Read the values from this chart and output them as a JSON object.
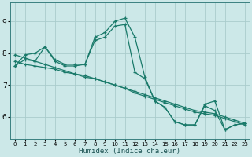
{
  "xlabel": "Humidex (Indice chaleur)",
  "ylabel": "",
  "bg_color": "#cce8e8",
  "line_color": "#1a7a6a",
  "grid_color": "#aacccc",
  "xlim": [
    -0.5,
    23.5
  ],
  "ylim": [
    5.3,
    9.6
  ],
  "xticks": [
    0,
    1,
    2,
    3,
    4,
    5,
    6,
    7,
    8,
    9,
    10,
    11,
    12,
    13,
    14,
    15,
    16,
    17,
    18,
    19,
    20,
    21,
    22,
    23
  ],
  "yticks": [
    6,
    7,
    8,
    9
  ],
  "lines": [
    {
      "x": [
        0,
        1,
        2,
        3,
        4,
        5,
        6,
        7,
        8,
        9,
        10,
        11,
        12,
        13,
        14,
        15,
        16,
        17,
        18,
        19,
        20,
        21,
        22,
        23
      ],
      "y": [
        7.6,
        7.95,
        8.0,
        8.2,
        7.75,
        7.6,
        7.6,
        7.65,
        8.5,
        8.65,
        9.0,
        9.1,
        8.5,
        7.25,
        6.5,
        6.3,
        5.85,
        5.75,
        5.75,
        6.35,
        6.2,
        5.6,
        5.75,
        5.8
      ]
    },
    {
      "x": [
        0,
        1,
        2,
        3,
        4,
        5,
        6,
        7,
        8,
        9,
        10,
        11,
        12,
        13,
        14,
        15,
        16,
        17,
        18,
        19,
        20,
        21,
        22,
        23
      ],
      "y": [
        7.6,
        7.8,
        7.75,
        8.2,
        7.8,
        7.65,
        7.65,
        7.65,
        8.4,
        8.5,
        8.85,
        8.9,
        7.4,
        7.2,
        6.5,
        6.3,
        5.85,
        5.75,
        5.75,
        6.4,
        6.5,
        5.6,
        5.75,
        5.8
      ]
    },
    {
      "x": [
        0,
        1,
        2,
        3,
        4,
        5,
        6,
        7,
        8,
        9,
        10,
        11,
        12,
        13,
        14,
        15,
        16,
        17,
        18,
        19,
        20,
        21,
        22,
        23
      ],
      "y": [
        7.95,
        7.85,
        7.75,
        7.65,
        7.55,
        7.45,
        7.35,
        7.3,
        7.2,
        7.1,
        7.0,
        6.9,
        6.8,
        6.7,
        6.6,
        6.5,
        6.4,
        6.3,
        6.2,
        6.15,
        6.1,
        6.0,
        5.9,
        5.8
      ]
    },
    {
      "x": [
        0,
        1,
        2,
        3,
        4,
        5,
        6,
        7,
        8,
        9,
        10,
        11,
        12,
        13,
        14,
        15,
        16,
        17,
        18,
        19,
        20,
        21,
        22,
        23
      ],
      "y": [
        7.75,
        7.65,
        7.6,
        7.55,
        7.5,
        7.4,
        7.35,
        7.25,
        7.2,
        7.1,
        7.0,
        6.9,
        6.75,
        6.65,
        6.55,
        6.45,
        6.35,
        6.25,
        6.15,
        6.1,
        6.05,
        5.95,
        5.85,
        5.75
      ]
    }
  ]
}
